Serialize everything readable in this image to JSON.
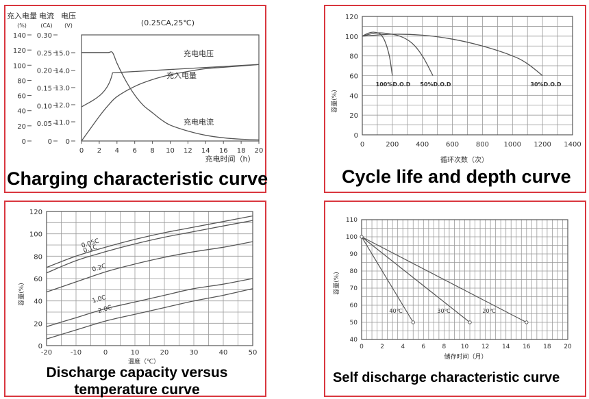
{
  "colors": {
    "frame": "#d9363e",
    "line": "#555555",
    "grid": "#9a9a9a",
    "text": "#333333"
  },
  "charts": [
    {
      "caption": "Charging characteristic curve",
      "chart_data": {
        "type": "line",
        "title": "(0.25CA,25℃)",
        "xlabel": "充电时间（h）",
        "x_ticks": [
          "0",
          "2",
          "4",
          "6",
          "8",
          "10",
          "12",
          "14",
          "16",
          "18",
          "20"
        ],
        "xlim": [
          0,
          20
        ],
        "y_axes": [
          {
            "header": "充入电量",
            "unit": "(%)",
            "ticks": [
              "0",
              "20",
              "40",
              "60",
              "80",
              "100",
              "120",
              "140"
            ],
            "range": [
              0,
              140
            ]
          },
          {
            "header": "电流",
            "unit": "(CA)",
            "ticks": [
              "0",
              "0.05",
              "0.10",
              "0.15",
              "0.20",
              "0.25",
              "0.30"
            ],
            "range": [
              0,
              0.3
            ]
          },
          {
            "header": "电压",
            "unit": "(V)",
            "ticks": [
              "0",
              "11.0",
              "12.0",
              "13.0",
              "14.0",
              "15.0"
            ]
          }
        ],
        "series": [
          {
            "name": "充电电压",
            "x": [
              0,
              1,
              2,
              3,
              3.5,
              4,
              6,
              8,
              10,
              12,
              14,
              16,
              18,
              20
            ],
            "y": [
              123,
              125,
              128,
              136,
              147,
              163,
              105.5,
              107,
              108,
              109,
              110,
              111,
              112,
              113
            ]
          },
          {
            "name": "充入电量",
            "x": [
              0,
              1,
              2,
              3,
              4,
              6,
              8,
              10,
              12,
              14,
              16,
              18,
              20
            ],
            "y": [
              0,
              18,
              36,
              52,
              65,
              80,
              90,
              97,
              102,
              106,
              108,
              110,
              112
            ]
          },
          {
            "name": "充电流",
            "x": [
              0,
              1,
              2,
              3,
              3.5,
              4,
              5,
              6,
              7,
              8,
              9,
              10,
              12,
              14,
              16,
              18,
              20
            ],
            "y": [
              0.25,
              0.25,
              0.25,
              0.25,
              0.25,
              0.22,
              0.17,
              0.13,
              0.1,
              0.08,
              0.06,
              0.045,
              0.028,
              0.016,
              0.009,
              0.005,
              0.003
            ]
          }
        ],
        "series_labels": [
          "充电电压",
          "充入电量",
          "充电电流"
        ]
      }
    },
    {
      "caption": "Cycle life and depth curve",
      "chart_data": {
        "type": "line",
        "xlabel": "循环次数（次）",
        "ylabel": "容量(%)",
        "x_ticks": [
          "0",
          "200",
          "400",
          "600",
          "800",
          "1000",
          "1200",
          "1400"
        ],
        "y_ticks": [
          "0",
          "20",
          "40",
          "60",
          "80",
          "100",
          "120"
        ],
        "xlim": [
          0,
          1400
        ],
        "ylim": [
          0,
          120
        ],
        "series": [
          {
            "name": "100%D.O.D",
            "x": [
              0,
              40,
              80,
              120,
              150,
              180,
              200
            ],
            "y": [
              100,
              103,
              104,
              102,
              95,
              80,
              60
            ]
          },
          {
            "name": "50%D.O.D",
            "x": [
              0,
              80,
              150,
              250,
              330,
              400,
              470
            ],
            "y": [
              100,
              103,
              103,
              100,
              93,
              80,
              60
            ]
          },
          {
            "name": "30%D.O.D",
            "x": [
              0,
              200,
              400,
              600,
              800,
              1000,
              1100,
              1200
            ],
            "y": [
              100,
              102,
              101,
              97,
              90,
              80,
              72,
              60
            ]
          }
        ]
      }
    },
    {
      "caption": "Discharge capacity versus temperature curve",
      "chart_data": {
        "type": "line",
        "xlabel": "温度（℃）",
        "ylabel": "容量(%)",
        "x_ticks": [
          "-20",
          "-10",
          "0",
          "10",
          "20",
          "30",
          "40",
          "50"
        ],
        "y_ticks": [
          "0",
          "20",
          "40",
          "60",
          "80",
          "100",
          "120"
        ],
        "xlim": [
          -20,
          50
        ],
        "ylim": [
          0,
          120
        ],
        "series": [
          {
            "name": "0.05C",
            "x": [
              -20,
              -10,
              0,
              10,
              20,
              30,
              40,
              50
            ],
            "y": [
              70,
              80,
              88,
              95,
              101,
              106,
              111,
              116
            ]
          },
          {
            "name": "0.1C",
            "x": [
              -20,
              -10,
              0,
              10,
              20,
              30,
              40,
              50
            ],
            "y": [
              65,
              76,
              84,
              91,
              97,
              102,
              107,
              112
            ]
          },
          {
            "name": "0.2C",
            "x": [
              -20,
              -10,
              0,
              10,
              20,
              30,
              40,
              50
            ],
            "y": [
              48,
              57,
              66,
              73,
              79,
              84,
              88,
              93
            ]
          },
          {
            "name": "1.0C",
            "x": [
              -20,
              -10,
              0,
              10,
              20,
              30,
              40,
              50
            ],
            "y": [
              17,
              25,
              33,
              39,
              45,
              51,
              55,
              60
            ]
          },
          {
            "name": "2.0C",
            "x": [
              -20,
              -10,
              0,
              10,
              20,
              30,
              40,
              50
            ],
            "y": [
              6,
              14,
              22,
              28,
              34,
              40,
              45,
              51
            ]
          }
        ]
      }
    },
    {
      "caption": "Self discharge characteristic curve",
      "chart_data": {
        "type": "line",
        "xlabel": "储存时间（月）",
        "ylabel": "容量(%)",
        "x_ticks": [
          "0",
          "2",
          "4",
          "6",
          "8",
          "10",
          "12",
          "14",
          "16",
          "18",
          "20"
        ],
        "y_ticks": [
          "40",
          "50",
          "60",
          "70",
          "80",
          "90",
          "100",
          "110"
        ],
        "xlim": [
          0,
          20
        ],
        "ylim": [
          40,
          110
        ],
        "series": [
          {
            "name": "40℃",
            "x": [
              0,
              5
            ],
            "y": [
              100,
              50
            ]
          },
          {
            "name": "30℃",
            "x": [
              0,
              10.5
            ],
            "y": [
              100,
              50
            ]
          },
          {
            "name": "20℃",
            "x": [
              0,
              16
            ],
            "y": [
              100,
              50
            ]
          }
        ]
      }
    }
  ]
}
